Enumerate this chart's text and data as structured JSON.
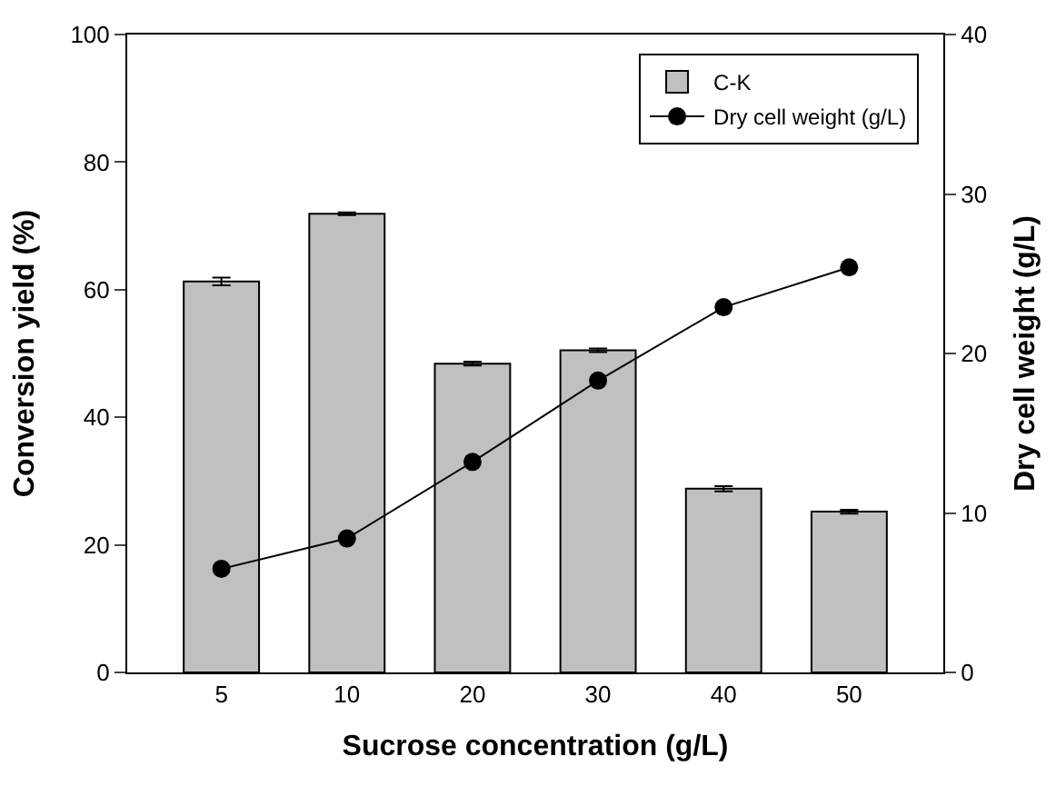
{
  "chart_data": {
    "type": "bar",
    "xlabel": "Sucrose concentration (g/L)",
    "ylabel": "Conversion yield (%)",
    "y2label": "Dry cell weight (g/L)",
    "categories": [
      "5",
      "10",
      "20",
      "30",
      "40",
      "50"
    ],
    "series": [
      {
        "name": "C-K",
        "color": "#c0c0c0",
        "values": [
          61.3,
          71.9,
          48.4,
          50.5,
          28.8,
          25.2
        ],
        "errors": [
          0.6,
          0.2,
          0.3,
          0.3,
          0.4,
          0.3
        ]
      },
      {
        "name": "Dry cell weight (g/L)",
        "type": "line",
        "axis": "y2",
        "color": "#000000",
        "marker": "circle",
        "values": [
          6.5,
          8.4,
          13.2,
          18.3,
          22.9,
          25.4
        ]
      }
    ],
    "ylim": [
      0,
      100
    ],
    "yticks": [
      0,
      20,
      40,
      60,
      80,
      100
    ],
    "y2lim": [
      0,
      40
    ],
    "y2ticks": [
      0,
      10,
      20,
      30,
      40
    ],
    "legend": "top right"
  }
}
